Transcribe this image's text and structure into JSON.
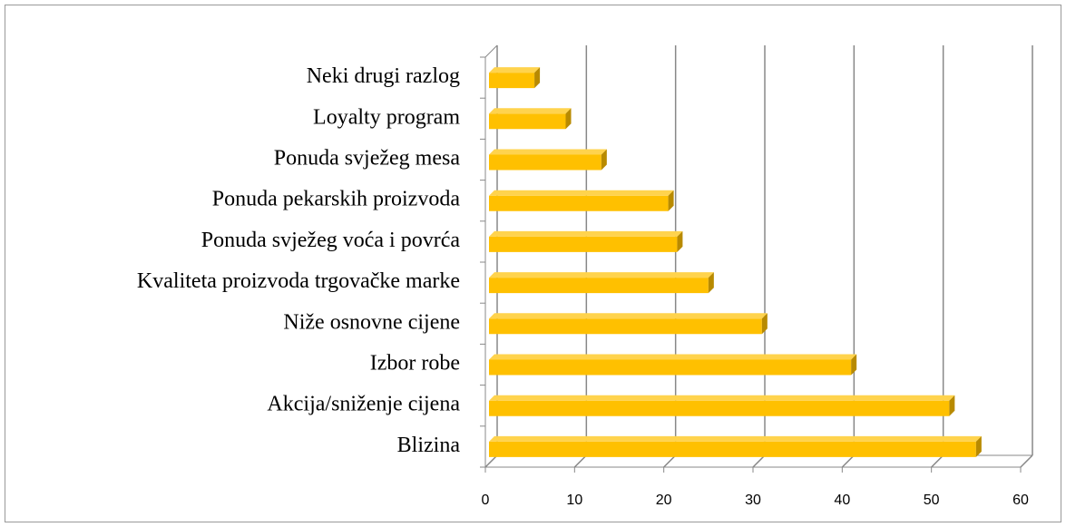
{
  "chart_data": {
    "type": "bar",
    "orientation": "horizontal",
    "categories": [
      "Blizina",
      "Akcija/sniženje cijena",
      "Izbor robe",
      "Niže osnovne cijene",
      "Kvaliteta proizvoda trgovačke marke",
      "Ponuda svježeg voća i povrća",
      "Ponuda pekarskih proizvoda",
      "Ponuda svježeg mesa",
      "Loyalty program",
      "Neki drugi razlog"
    ],
    "values": [
      55,
      52,
      41,
      31,
      25,
      21.5,
      20.5,
      13,
      9,
      5.5
    ],
    "color": "#ffc000",
    "xlim": [
      0,
      60
    ],
    "xticks": [
      0,
      10,
      20,
      30,
      40,
      50,
      60
    ],
    "grid": true
  }
}
